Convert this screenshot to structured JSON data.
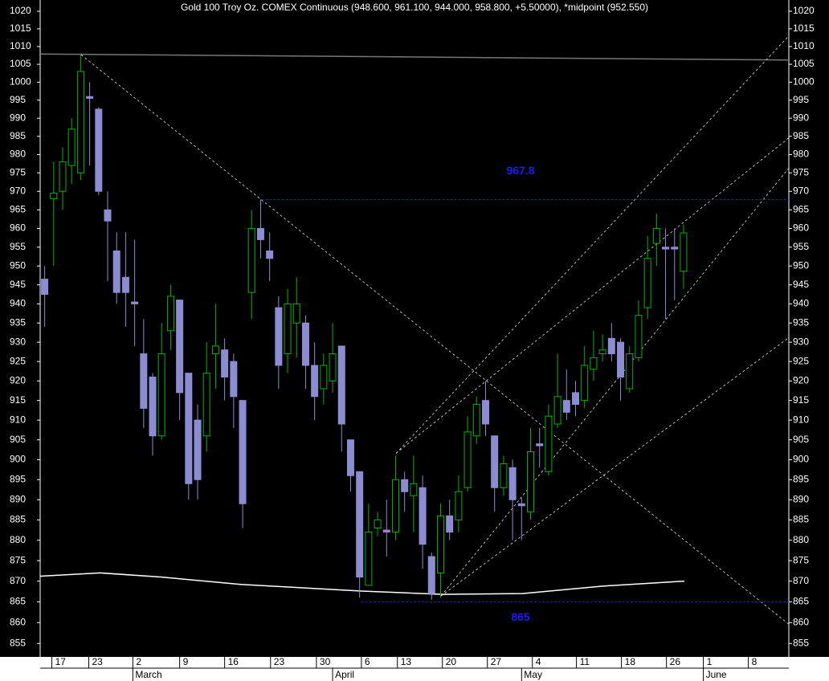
{
  "chart_data": {
    "type": "candlestick",
    "title": "Gold 100 Troy Oz. COMEX Continuous (948.600, 961.100, 944.000, 958.800, +5.50000), *midpoint (952.550)",
    "log_scale": true,
    "up_color": "#00b400",
    "down_color": "#8c8cd2",
    "ylim": [
      851.8,
      1023.2
    ],
    "yticks": [
      855,
      860,
      865,
      870,
      875,
      880,
      885,
      890,
      895,
      900,
      905,
      910,
      915,
      920,
      925,
      930,
      935,
      940,
      945,
      950,
      955,
      960,
      965,
      970,
      975,
      980,
      985,
      990,
      995,
      1000,
      1005,
      1010,
      1015,
      1020
    ],
    "xlim": [
      -0.5,
      82.7
    ],
    "xticks": [
      {
        "value": 0.8,
        "label": "17"
      },
      {
        "value": 4.9,
        "label": "23"
      },
      {
        "value": 9.8,
        "label": "2"
      },
      {
        "value": 15,
        "label": "9"
      },
      {
        "value": 20,
        "label": "16"
      },
      {
        "value": 25.1,
        "label": "23"
      },
      {
        "value": 30.2,
        "label": "30"
      },
      {
        "value": 35.2,
        "label": "6"
      },
      {
        "value": 39.2,
        "label": "13"
      },
      {
        "value": 44.2,
        "label": "20"
      },
      {
        "value": 49.2,
        "label": "27"
      },
      {
        "value": 54.2,
        "label": "4"
      },
      {
        "value": 59.1,
        "label": "11"
      },
      {
        "value": 64.1,
        "label": "18"
      },
      {
        "value": 69.1,
        "label": "26"
      },
      {
        "value": 73.2,
        "label": "1"
      },
      {
        "value": 78.2,
        "label": "8"
      }
    ],
    "month_ticks": [
      {
        "value": 9.8,
        "label": "March"
      },
      {
        "value": 32.0,
        "label": "April"
      },
      {
        "value": 53.0,
        "label": "May"
      },
      {
        "value": 73.2,
        "label": "June"
      }
    ],
    "open": [
      946.5,
      968,
      970,
      977,
      975,
      996,
      992.5,
      965,
      954,
      947,
      940.5,
      927,
      921,
      906,
      933,
      941,
      922,
      910,
      906,
      927,
      928,
      925,
      915,
      943,
      960,
      954,
      939,
      927,
      935,
      935,
      924,
      918,
      920,
      929,
      905,
      897,
      869,
      883,
      882.5,
      882,
      895,
      891,
      893,
      876,
      872,
      886,
      885,
      893,
      906,
      915,
      906,
      893,
      898,
      889,
      887,
      904,
      897,
      909,
      915,
      917,
      915,
      923,
      927,
      931,
      930,
      918,
      926,
      939,
      956,
      955,
      955,
      948.6
    ],
    "high": [
      950,
      978,
      982,
      990,
      1008,
      1000,
      993,
      970,
      959,
      959,
      957,
      936,
      922,
      935,
      945,
      941,
      922,
      914,
      930,
      940,
      931,
      927,
      915,
      965,
      967.8,
      959,
      942,
      944,
      947,
      937,
      930,
      927,
      935,
      929,
      905,
      897,
      889,
      887,
      890,
      901,
      897,
      901,
      896,
      877,
      889,
      890,
      896,
      911,
      916,
      920,
      906,
      901,
      900,
      890.5,
      908,
      908,
      914,
      927,
      923,
      920,
      929,
      933,
      932,
      935,
      931,
      929,
      941,
      958,
      964,
      960,
      960,
      961.1
    ],
    "low": [
      934,
      950,
      965,
      972,
      973,
      977,
      969,
      946,
      940,
      934,
      929,
      908,
      901,
      905,
      928,
      910,
      890,
      890,
      902,
      918,
      915,
      908,
      883,
      936,
      952,
      946,
      918,
      922,
      926,
      918,
      910,
      914,
      917,
      902,
      892,
      866,
      869,
      881,
      876,
      880,
      887,
      882,
      873,
      865.5,
      866,
      880,
      882,
      892,
      904,
      906,
      887,
      891,
      880,
      880,
      885,
      898,
      896,
      908,
      910,
      911,
      913,
      920,
      925,
      925,
      915,
      917,
      925,
      936,
      950,
      936,
      941,
      944
    ],
    "close": [
      942.5,
      969.5,
      978,
      987,
      1003,
      995.5,
      970,
      962,
      943,
      943,
      940,
      913,
      906,
      927,
      942,
      917,
      894,
      895,
      922,
      929,
      921,
      916,
      889,
      960,
      957,
      952,
      924,
      940,
      940,
      924,
      916,
      924,
      927,
      909,
      896,
      871,
      882,
      885,
      882,
      895,
      892,
      894,
      879,
      867,
      886,
      882,
      892,
      907,
      914,
      909,
      893,
      899,
      890,
      888.5,
      902,
      903.5,
      911,
      916,
      912,
      914,
      924,
      926,
      928,
      927,
      921,
      927,
      937,
      952,
      960,
      954.5,
      954.5,
      958.8
    ],
    "moving_average": {
      "x": [
        -0.5,
        6.2,
        12.9,
        21.8,
        35.2,
        44.2,
        53.1,
        62.0,
        71.1
      ],
      "values": [
        871.2,
        872.0,
        871.0,
        869.2,
        867.6,
        866.8,
        867.0,
        868.8,
        870.0
      ]
    },
    "reference_line": {
      "x": [
        -0.5,
        82.7
      ],
      "values": [
        1007.9,
        1006.2
      ]
    },
    "trendlines": [
      {
        "x": [
          4.05,
          82.7
        ],
        "values": [
          1007.7,
          859.6
        ]
      },
      {
        "x": [
          39.05,
          82.7
        ],
        "values": [
          901.6,
          1013
        ]
      },
      {
        "x": [
          39.05,
          82.7
        ],
        "values": [
          901.6,
          984.6
        ]
      },
      {
        "x": [
          44.05,
          82.7
        ],
        "values": [
          866.4,
          976.3
        ]
      },
      {
        "x": [
          44.05,
          82.7
        ],
        "values": [
          866.4,
          931.2
        ]
      }
    ],
    "levels": [
      {
        "value": 967.8,
        "x": [
          24.1,
          82.7
        ]
      },
      {
        "value": 865,
        "x": [
          35.2,
          82.7
        ]
      }
    ]
  }
}
